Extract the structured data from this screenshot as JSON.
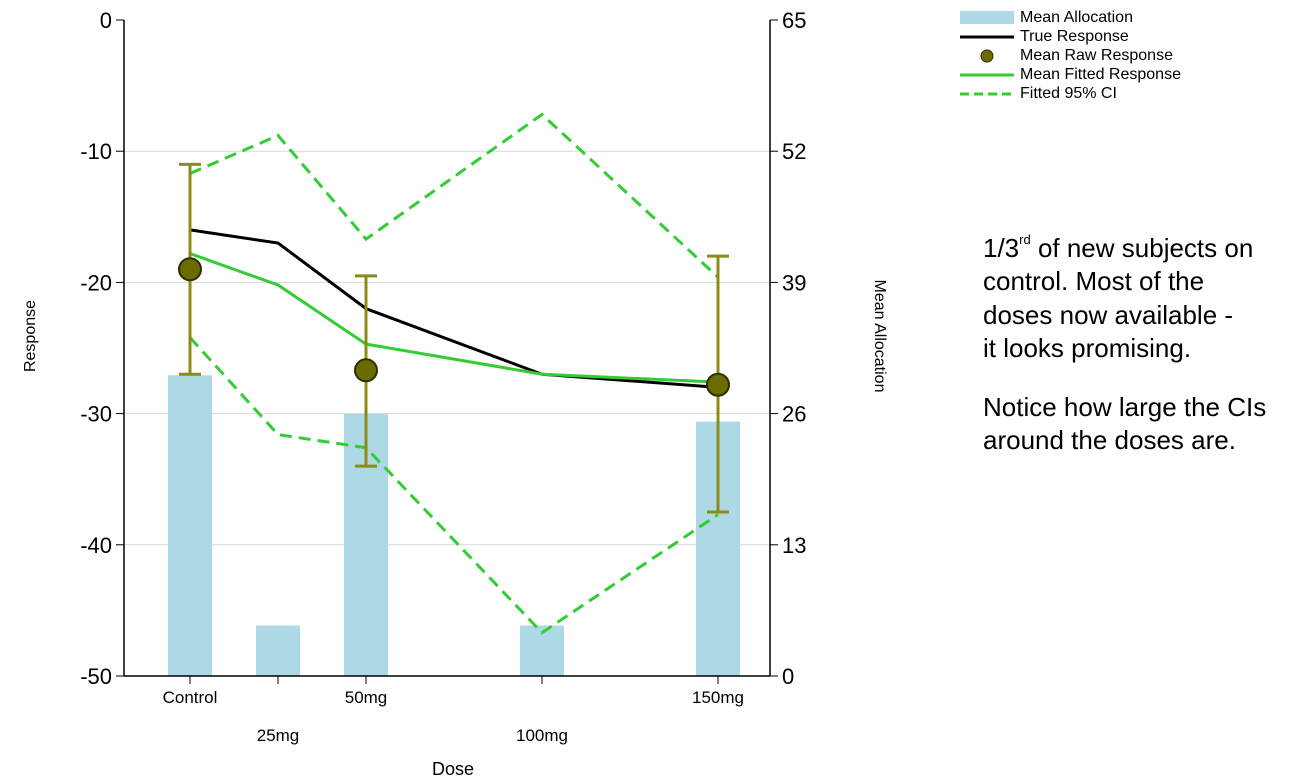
{
  "chart_data": {
    "type": "bar",
    "xlabel": "Dose",
    "ylabel": "Response",
    "y2label": "Mean Allocation",
    "categories": [
      "Control",
      "25mg",
      "50mg",
      "100mg",
      "150mg"
    ],
    "x": [
      0,
      25,
      50,
      100,
      150
    ],
    "ylim": [
      -50,
      0
    ],
    "yticks": [
      "0",
      "-10",
      "-20",
      "-30",
      "-40",
      "-50"
    ],
    "y2lim": [
      0,
      65
    ],
    "y2ticks": [
      "65",
      "52",
      "39",
      "26",
      "13",
      "0"
    ],
    "grid": true,
    "legend_position": "top-right",
    "series": [
      {
        "name": "Mean Allocation",
        "type": "bar",
        "axis": "right",
        "color": "#add8e6",
        "values": [
          29.8,
          5,
          26,
          5,
          25.2
        ]
      },
      {
        "name": "True Response",
        "type": "line",
        "color": "#000000",
        "values": [
          -16,
          -17,
          -22,
          -27,
          -28
        ]
      },
      {
        "name": "Mean Raw Response",
        "type": "scatter",
        "color": "#6b6b00",
        "values": [
          -19,
          null,
          -26.7,
          null,
          -27.8
        ],
        "error_low": [
          -27,
          null,
          -34,
          null,
          -37.5
        ],
        "error_high": [
          -11,
          null,
          -19.5,
          null,
          -18
        ]
      },
      {
        "name": "Mean Fitted Response",
        "type": "line",
        "color": "#33cc33",
        "values": [
          -17.8,
          -20.2,
          -24.7,
          -27,
          -27.6
        ]
      },
      {
        "name": "Fitted 95% CI",
        "type": "dashed",
        "color": "#33cc33",
        "upper": [
          -11.7,
          -8.8,
          -16.7,
          -7.2,
          -19.6
        ],
        "lower": [
          -24.2,
          -31.6,
          -32.6,
          -46.7,
          -37.7
        ]
      }
    ]
  },
  "annotation": {
    "line1_pre": "1/3",
    "line1_sup": "rd",
    "line1_post": " of new subjects on",
    "line2": "control. Most of the",
    "line3": "doses now available -",
    "line4": "it looks promising.",
    "line5": "Notice how large the CIs",
    "line6": "around the doses are."
  }
}
